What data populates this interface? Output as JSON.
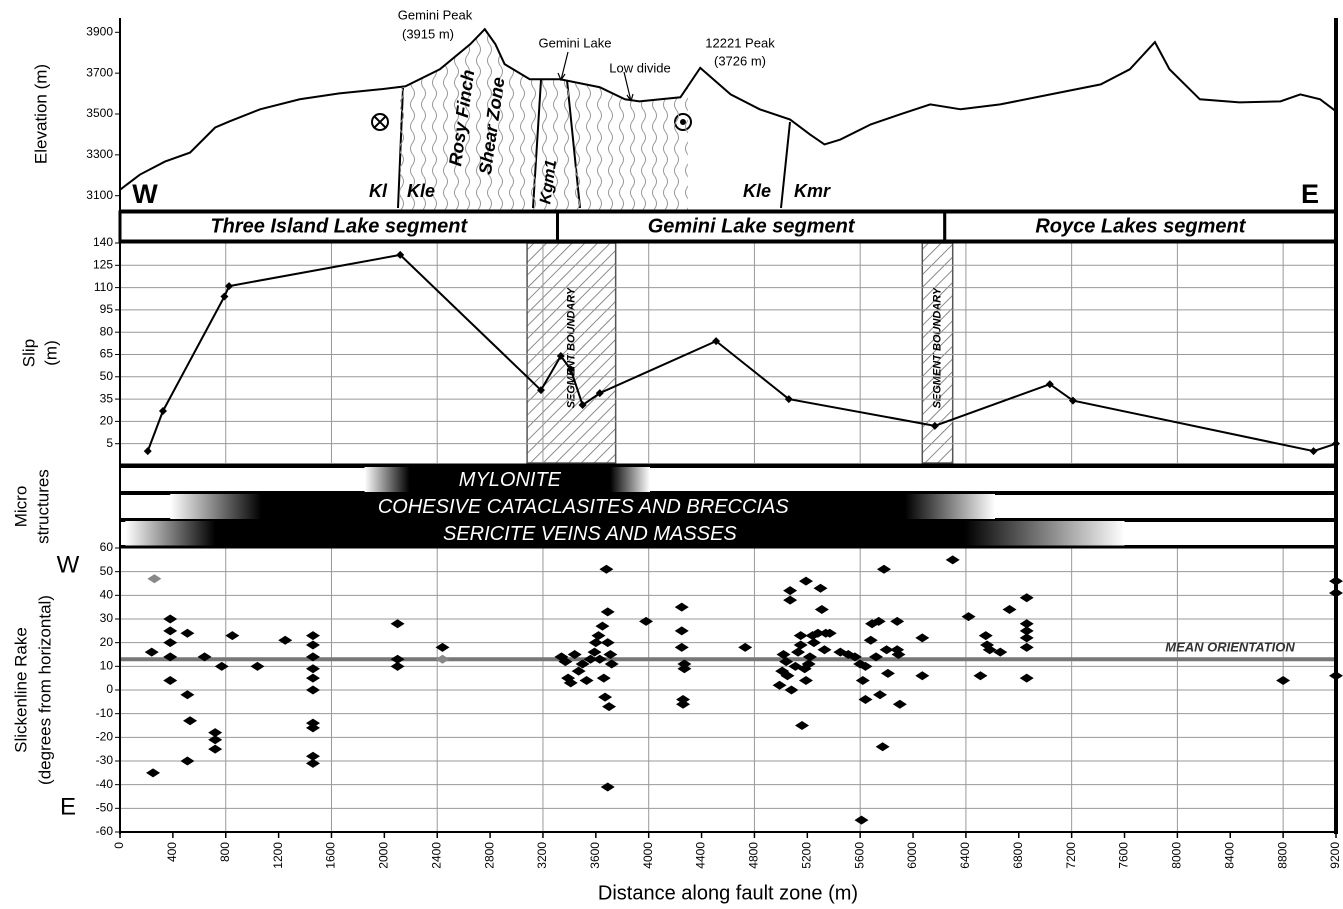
{
  "chart_data": [
    {
      "type": "line",
      "ylabel": [
        "Elevation (m)"
      ],
      "xlim": [
        0,
        9200
      ],
      "ylim": [
        3030,
        3970
      ],
      "yticks": [
        3100,
        3300,
        3500,
        3700,
        3900
      ],
      "grid": false,
      "markers": false,
      "color": "#000000",
      "x": [
        0,
        150,
        340,
        530,
        720,
        830,
        1060,
        1360,
        1660,
        1970,
        2160,
        2420,
        2650,
        2760,
        2840,
        2910,
        3100,
        3330,
        3630,
        3820,
        3930,
        4240,
        4390,
        4620,
        4840,
        5070,
        5220,
        5330,
        5450,
        5680,
        5900,
        6130,
        6360,
        6660,
        7040,
        7420,
        7640,
        7830,
        7940,
        8170,
        8470,
        8780,
        8930,
        9080,
        9200
      ],
      "values": [
        3129,
        3203,
        3267,
        3311,
        3434,
        3464,
        3523,
        3572,
        3601,
        3621,
        3636,
        3719,
        3842,
        3915,
        3842,
        3744,
        3670,
        3670,
        3631,
        3572,
        3562,
        3582,
        3726,
        3596,
        3523,
        3473,
        3400,
        3351,
        3375,
        3449,
        3498,
        3547,
        3523,
        3547,
        3596,
        3645,
        3719,
        3852,
        3719,
        3572,
        3557,
        3562,
        3596,
        3572,
        3513
      ],
      "annotations": [
        "Gemini Peak",
        "(3915 m)",
        "Gemini Lake",
        "12221 Peak",
        "(3726 m)",
        "Low divide",
        "Rosy Finch",
        "Shear Zone",
        "Kl",
        "Kle",
        "Kgm1",
        "Kle",
        "Kmr",
        "W",
        "E"
      ]
    },
    {
      "type": "line",
      "ylabel": [
        "Slip",
        "(m)"
      ],
      "xlim": [
        0,
        9200
      ],
      "ylim": [
        -8,
        140
      ],
      "yticks": [
        5,
        20,
        35,
        50,
        65,
        80,
        95,
        110,
        125,
        140
      ],
      "grid": true,
      "markers": true,
      "color": "#000000",
      "x": [
        210,
        325,
        790,
        825,
        2120,
        3185,
        3335,
        3410,
        3500,
        3630,
        4510,
        5060,
        6165,
        7035,
        7210,
        9030,
        9200
      ],
      "values": [
        0,
        27,
        104,
        111,
        132,
        41,
        64,
        55,
        31,
        39,
        74,
        35,
        17,
        45,
        34,
        0,
        5
      ],
      "segments": [
        {
          "name": "Three Island Lake segment",
          "start": 0,
          "end": 3310
        },
        {
          "name": "Gemini Lake segment",
          "start": 3310,
          "end": 6240
        },
        {
          "name": "Royce Lakes segment",
          "start": 6240,
          "end": 9200
        }
      ],
      "boundary_zones": [
        {
          "label": "SEGMENT BOUNDARY",
          "start": 3080,
          "end": 3750
        },
        {
          "label": "SEGMENT BOUNDARY",
          "start": 6070,
          "end": 6300
        }
      ]
    },
    {
      "type": "bands",
      "ylabel": [
        "Micro",
        "structures"
      ],
      "xlim": [
        0,
        9200
      ],
      "bands": [
        {
          "name": "MYLONITE",
          "fade_start": 1850,
          "full_start": 2190,
          "full_end": 3710,
          "fade_end": 4010
        },
        {
          "name": "COHESIVE CATACLASITES AND BRECCIAS",
          "fade_start": 380,
          "full_start": 1070,
          "full_end": 5940,
          "fade_end": 6620
        },
        {
          "name": "SERICITE VEINS AND MASSES",
          "fade_start": 40,
          "full_start": 720,
          "full_end": 6390,
          "fade_end": 7600
        }
      ]
    },
    {
      "type": "scatter",
      "ylabel": [
        "Slickenline Rake",
        "(degrees from horizontal)"
      ],
      "xlabel": "Distance along fault zone (m)",
      "xlim": [
        0,
        9200
      ],
      "ylim": [
        -60,
        60
      ],
      "xticks": [
        0,
        400,
        800,
        1200,
        1600,
        2000,
        2400,
        2800,
        3200,
        3600,
        4000,
        4400,
        4800,
        5200,
        5600,
        6000,
        6400,
        6800,
        7200,
        7600,
        8000,
        8400,
        8800,
        9200
      ],
      "yticks": [
        -60,
        -50,
        -40,
        -30,
        -20,
        -10,
        0,
        10,
        20,
        30,
        40,
        50,
        60
      ],
      "grid": true,
      "y_end_labels": [
        "W",
        "E"
      ],
      "mean_line": {
        "label": "MEAN ORIENTATION",
        "value": 13,
        "color": "#777777"
      },
      "series": [
        {
          "color": "#000000",
          "x": [
            240,
            250,
            380,
            380,
            380,
            380,
            380,
            510,
            510,
            530,
            510,
            640,
            720,
            720,
            720,
            770,
            850,
            1040,
            1250,
            1460,
            1460,
            1460,
            1460,
            1460,
            1460,
            1460,
            1460,
            1460,
            1460,
            2100,
            2100,
            2100,
            2440,
            3340,
            3370,
            3390,
            3410,
            3440,
            3470,
            3500,
            3530,
            3560,
            3590,
            3600,
            3620,
            3630,
            3650,
            3660,
            3670,
            3680,
            3690,
            3690,
            3700,
            3710,
            3720,
            3690,
            3980,
            4250,
            4250,
            4250,
            4270,
            4270,
            4260,
            4260,
            4730,
            4990,
            5010,
            5020,
            5040,
            5050,
            5070,
            5070,
            5080,
            5110,
            5130,
            5150,
            5150,
            5160,
            5180,
            5190,
            5190,
            5210,
            5220,
            5240,
            5250,
            5280,
            5300,
            5310,
            5330,
            5340,
            5370,
            5450,
            5510,
            5560,
            5600,
            5610,
            5620,
            5640,
            5640,
            5680,
            5690,
            5720,
            5740,
            5750,
            5770,
            5780,
            5800,
            5810,
            5880,
            5880,
            5890,
            5900,
            6070,
            6070,
            6300,
            6420,
            6510,
            6550,
            6560,
            6580,
            6660,
            6730,
            6860,
            6860,
            6860,
            6860,
            6860,
            6860,
            8800,
            9200,
            9200,
            9200
          ],
          "y": [
            16,
            -35,
            30,
            25,
            20,
            14,
            4,
            24,
            -2,
            -13,
            -30,
            14,
            -18,
            -21,
            -25,
            10,
            23,
            10,
            21,
            23,
            19,
            14,
            9,
            5,
            0,
            -14,
            -16,
            -28,
            -31,
            28,
            13,
            10,
            18,
            14,
            12,
            5,
            3,
            15,
            8,
            11,
            4,
            13,
            16,
            20,
            23,
            13,
            27,
            5,
            -3,
            51,
            33,
            20,
            -7,
            15,
            11,
            -41,
            29,
            35,
            25,
            18,
            11,
            9,
            -4,
            -6,
            18,
            2,
            8,
            15,
            12,
            6,
            42,
            38,
            0,
            10,
            16,
            19,
            23,
            -15,
            9,
            46,
            4,
            11,
            14,
            23,
            20,
            24,
            43,
            34,
            17,
            24,
            24,
            16,
            15,
            14,
            11,
            -55,
            4,
            -4,
            10,
            21,
            28,
            14,
            29,
            -2,
            -24,
            51,
            17,
            7,
            29,
            17,
            15,
            -6,
            22,
            6,
            55,
            31,
            6,
            23,
            19,
            17,
            16,
            34,
            39,
            28,
            25,
            22,
            18,
            5,
            4,
            46,
            41,
            6
          ]
        },
        {
          "color": "#888888",
          "x": [
            260,
            2440
          ],
          "y": [
            47,
            13
          ]
        }
      ]
    }
  ]
}
